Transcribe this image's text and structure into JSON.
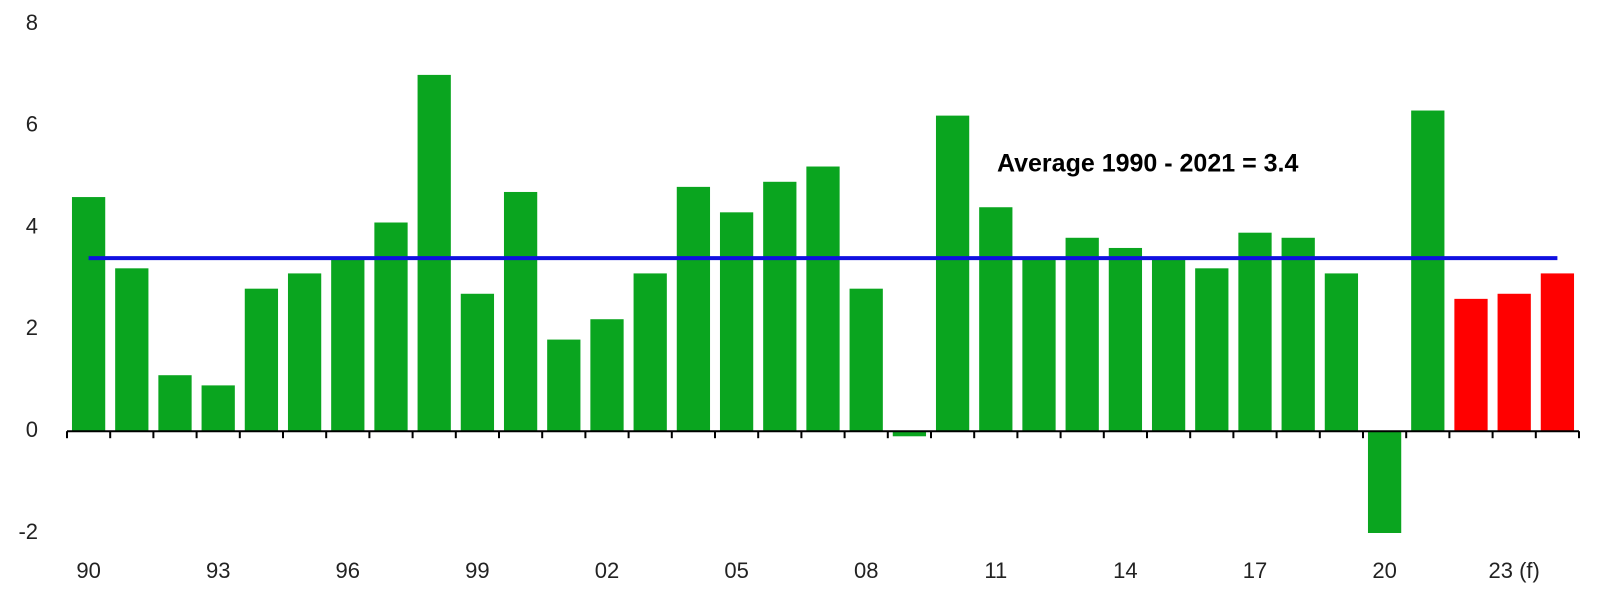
{
  "chart_data": {
    "type": "bar",
    "categories": [
      "90",
      null,
      null,
      "93",
      null,
      null,
      "96",
      null,
      null,
      "99",
      null,
      null,
      "02",
      null,
      null,
      "05",
      null,
      null,
      "08",
      null,
      null,
      "11",
      null,
      null,
      "14",
      null,
      null,
      "17",
      null,
      null,
      "20",
      null,
      null,
      "23 (f)",
      null
    ],
    "values": [
      4.6,
      3.2,
      1.1,
      0.9,
      2.8,
      3.1,
      3.4,
      4.1,
      7.0,
      2.7,
      4.7,
      1.8,
      2.2,
      3.1,
      4.8,
      4.3,
      4.9,
      5.2,
      2.8,
      -0.1,
      6.2,
      4.4,
      3.4,
      3.8,
      3.6,
      3.4,
      3.2,
      3.9,
      3.8,
      3.1,
      -2.0,
      6.3,
      2.6,
      2.7,
      3.1
    ],
    "colors": [
      "#0aa51f",
      "#0aa51f",
      "#0aa51f",
      "#0aa51f",
      "#0aa51f",
      "#0aa51f",
      "#0aa51f",
      "#0aa51f",
      "#0aa51f",
      "#0aa51f",
      "#0aa51f",
      "#0aa51f",
      "#0aa51f",
      "#0aa51f",
      "#0aa51f",
      "#0aa51f",
      "#0aa51f",
      "#0aa51f",
      "#0aa51f",
      "#0aa51f",
      "#0aa51f",
      "#0aa51f",
      "#0aa51f",
      "#0aa51f",
      "#0aa51f",
      "#0aa51f",
      "#0aa51f",
      "#0aa51f",
      "#0aa51f",
      "#0aa51f",
      "#0aa51f",
      "#0aa51f",
      "#ff0000",
      "#ff0000",
      "#ff0000"
    ],
    "average": 3.4,
    "average_color": "#1010e0",
    "annotation": "Average 1990 - 2021 = 3.4",
    "ylim": [
      -2,
      8
    ],
    "yticks": [
      -2,
      0,
      2,
      4,
      6,
      8
    ],
    "grid": false
  }
}
